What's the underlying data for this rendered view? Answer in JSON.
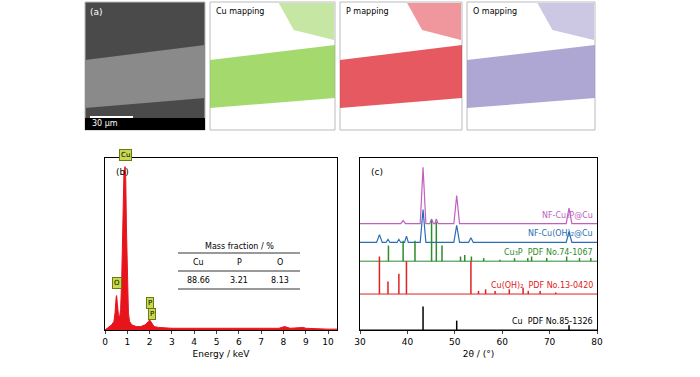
{
  "chart_data": [
    {
      "type": "element_maps",
      "label": "(a)",
      "panels": [
        {
          "kind": "SEM",
          "scale_bar": "30 μm",
          "color": "#8a8a8a"
        },
        {
          "kind": "map",
          "title": "Cu mapping",
          "color": "#8cd048"
        },
        {
          "kind": "map",
          "title": "P mapping",
          "color": "#e0303a"
        },
        {
          "kind": "map",
          "title": "O mapping",
          "color": "#9a90c8"
        }
      ]
    },
    {
      "type": "area",
      "label": "(b)",
      "xlabel": "Energy / keV",
      "color": "#e8141c",
      "xlim": [
        0,
        10.4
      ],
      "xticks": [
        0,
        1,
        2,
        3,
        4,
        5,
        6,
        7,
        8,
        9,
        10
      ],
      "ylim": [
        0,
        100
      ],
      "tick_labels": "x",
      "x": [
        0,
        0.1,
        0.2,
        0.3,
        0.4,
        0.45,
        0.5,
        0.52,
        0.55,
        0.6,
        0.65,
        0.7,
        0.75,
        0.8,
        0.85,
        0.9,
        0.93,
        0.96,
        1.0,
        1.05,
        1.1,
        1.2,
        1.4,
        1.6,
        1.8,
        1.9,
        1.95,
        2.0,
        2.05,
        2.1,
        2.15,
        2.2,
        2.4,
        3,
        4,
        5,
        6,
        7,
        7.8,
        8.05,
        8.3,
        8.9,
        9,
        10,
        10.4
      ],
      "values": [
        0,
        1,
        2,
        3,
        5,
        10,
        19,
        20,
        16,
        9,
        7,
        12,
        30,
        65,
        92,
        95,
        88,
        60,
        25,
        10,
        5,
        3,
        2,
        2,
        3,
        4,
        5,
        6,
        5,
        4,
        3,
        2,
        1.5,
        1,
        1,
        1,
        1,
        1,
        1,
        2,
        1,
        1.5,
        1,
        0.5,
        0.5
      ],
      "annotations": [
        {
          "text": "Cu",
          "x": 0.9,
          "y": 98
        },
        {
          "text": "O",
          "x": 0.52,
          "y": 24
        },
        {
          "text": "P",
          "x": 2.0,
          "y": 12
        },
        {
          "text": "P",
          "x": 2.12,
          "y": 6
        }
      ],
      "table": {
        "title": "Mass fraction / %",
        "header": [
          "Cu",
          "P",
          "O"
        ],
        "values": [
          88.66,
          3.21,
          8.13
        ]
      }
    },
    {
      "type": "line",
      "label": "(c)",
      "xlabel": "2θ / (°)",
      "xlim": [
        30,
        80
      ],
      "xticks": [
        30,
        40,
        50,
        60,
        70,
        80
      ],
      "ylim": [
        0,
        110
      ],
      "tick_labels": "x",
      "series": [
        {
          "name": "NF-Cu₃P@Cu",
          "type": "line",
          "color": "#c060c0",
          "x": [
            30,
            38.6,
            39.1,
            39.6,
            42.7,
            43.3,
            43.9,
            44.7,
            45.1,
            45.5,
            45.8,
            46.1,
            46.5,
            49.8,
            50.4,
            51.0,
            73.5,
            74.1,
            74.7,
            80
          ],
          "values": [
            68,
            68,
            70,
            68,
            68,
            104,
            68,
            68,
            71,
            68,
            68,
            71,
            68,
            68,
            86,
            68,
            68,
            78,
            68,
            68
          ]
        },
        {
          "name": "NF-Cu(OH)₂@Cu",
          "type": "line",
          "color": "#2a6db5",
          "x": [
            30,
            33.5,
            34.1,
            34.7,
            35.5,
            35.9,
            36.3,
            37.8,
            38.2,
            38.6,
            39.4,
            39.8,
            40.2,
            42.7,
            43.3,
            43.9,
            49.8,
            50.4,
            51.0,
            52.9,
            53.4,
            53.9,
            73.5,
            74.1,
            74.7,
            80
          ],
          "values": [
            56,
            56,
            61,
            56,
            56,
            58,
            56,
            56,
            58,
            56,
            56,
            60,
            56,
            56,
            77,
            56,
            56,
            67,
            56,
            56,
            59,
            56,
            56,
            63,
            56,
            56
          ]
        },
        {
          "name": "Cu₃P  PDF No.74-1067",
          "type": "stick",
          "color": "#2e8b2e",
          "base": 44,
          "x": [
            36.0,
            39.1,
            41.6,
            45.1,
            46.1,
            47.3,
            51.2,
            52.1,
            53.5,
            56.1,
            59.5,
            62.6,
            65.4,
            66.2,
            69.4,
            73.6,
            76.3,
            78.7
          ],
          "values": [
            54,
            57,
            57,
            70,
            69,
            54,
            47,
            48,
            47,
            46,
            45,
            46,
            46,
            47,
            46,
            47,
            46,
            46
          ]
        },
        {
          "name": "Cu(OH)₂  PDF No.13-0420",
          "type": "stick",
          "color": "#e02020",
          "base": 23,
          "x": [
            34.1,
            35.9,
            38.2,
            39.8,
            53.4,
            55.0,
            56.5,
            58.5,
            61.5,
            64.4,
            65.5,
            68.0,
            71.3
          ],
          "values": [
            47,
            31,
            36,
            44,
            44,
            25,
            26,
            25,
            26,
            27,
            25,
            25,
            24
          ]
        },
        {
          "name": "Cu  PDF No.85-1326",
          "type": "stick",
          "color": "#000000",
          "base": 0,
          "x": [
            43.3,
            50.4,
            74.1
          ],
          "values": [
            15,
            6,
            3
          ]
        }
      ]
    }
  ]
}
